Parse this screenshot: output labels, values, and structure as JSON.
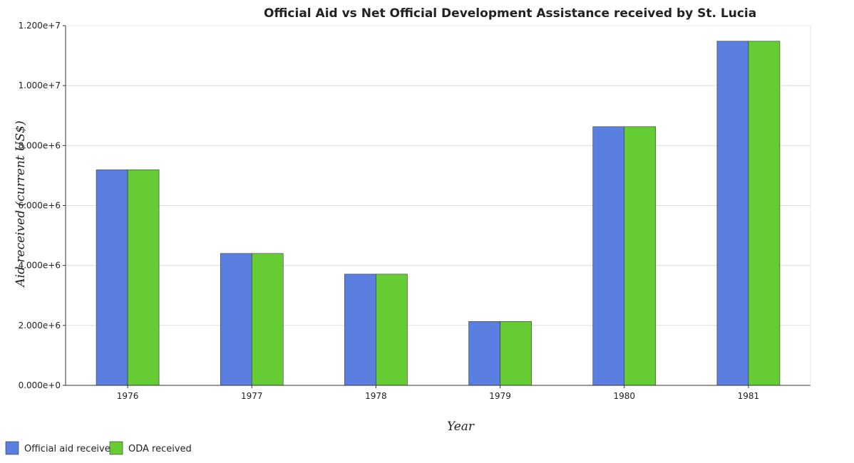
{
  "chart_data": {
    "type": "bar",
    "title": "Official Aid vs Net Official Development Assistance received by St. Lucia",
    "xlabel": "Year",
    "ylabel": "Aid received (current US$)",
    "categories": [
      "1976",
      "1977",
      "1978",
      "1979",
      "1980",
      "1981"
    ],
    "series": [
      {
        "name": "Official aid received",
        "color": "#5b7fe0",
        "values": [
          7190000,
          4400000,
          3710000,
          2130000,
          8630000,
          11480000
        ]
      },
      {
        "name": "ODA received",
        "color": "#66cc33",
        "values": [
          7190000,
          4400000,
          3710000,
          2130000,
          8630000,
          11480000
        ]
      }
    ],
    "ylim": [
      0,
      12000000
    ],
    "yticks": [
      0,
      2000000,
      4000000,
      6000000,
      8000000,
      10000000,
      12000000
    ],
    "ytick_labels": [
      "0.000e+0",
      "2.000e+6",
      "4.000e+6",
      "6.000e+6",
      "8.000e+6",
      "1.000e+7",
      "1.200e+7"
    ],
    "grid": true,
    "legend_position": "bottom-left"
  }
}
